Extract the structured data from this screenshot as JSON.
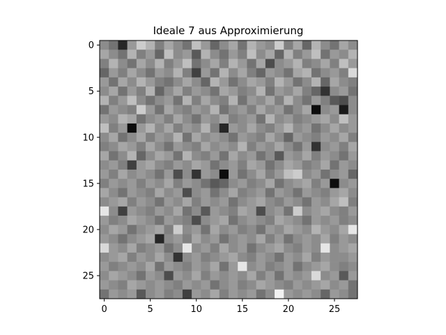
{
  "chart_data": {
    "type": "heatmap",
    "title": "Ideale 7 aus Approximierung",
    "xlabel": "",
    "ylabel": "",
    "colormap": "gray",
    "rows": 28,
    "cols": 28,
    "xticks": [
      0,
      5,
      10,
      15,
      20,
      25
    ],
    "yticks": [
      0,
      5,
      10,
      15,
      20,
      25
    ],
    "xlim": [
      -0.5,
      27.5
    ],
    "ylim": [
      27.5,
      -0.5
    ],
    "vmin": 0,
    "vmax": 1,
    "values": [
      [
        0.55,
        0.45,
        0.15,
        0.6,
        0.8,
        0.7,
        0.5,
        0.65,
        0.55,
        0.45,
        0.75,
        0.6,
        0.4,
        0.55,
        0.65,
        0.45,
        0.7,
        0.6,
        0.55,
        0.8,
        0.5,
        0.65,
        0.4,
        0.7,
        0.55,
        0.45,
        0.65,
        0.55
      ],
      [
        0.65,
        0.55,
        0.45,
        0.7,
        0.5,
        0.6,
        0.4,
        0.75,
        0.55,
        0.6,
        0.35,
        0.7,
        0.55,
        0.45,
        0.6,
        0.5,
        0.75,
        0.55,
        0.65,
        0.4,
        0.7,
        0.5,
        0.6,
        0.75,
        0.45,
        0.6,
        0.55,
        0.7
      ],
      [
        0.5,
        0.7,
        0.55,
        0.45,
        0.65,
        0.55,
        0.7,
        0.5,
        0.6,
        0.75,
        0.45,
        0.55,
        0.65,
        0.5,
        0.7,
        0.6,
        0.45,
        0.65,
        0.3,
        0.55,
        0.6,
        0.7,
        0.5,
        0.55,
        0.65,
        0.5,
        0.75,
        0.6
      ],
      [
        0.4,
        0.6,
        0.5,
        0.65,
        0.55,
        0.45,
        0.6,
        0.55,
        0.7,
        0.5,
        0.25,
        0.6,
        0.45,
        0.7,
        0.55,
        0.65,
        0.5,
        0.4,
        0.6,
        0.55,
        0.45,
        0.65,
        0.7,
        0.45,
        0.55,
        0.6,
        0.5,
        0.85
      ],
      [
        0.6,
        0.45,
        0.65,
        0.55,
        0.7,
        0.6,
        0.5,
        0.45,
        0.55,
        0.65,
        0.55,
        0.4,
        0.7,
        0.6,
        0.45,
        0.55,
        0.65,
        0.6,
        0.5,
        0.7,
        0.6,
        0.45,
        0.55,
        0.7,
        0.4,
        0.65,
        0.55,
        0.5
      ],
      [
        0.55,
        0.65,
        0.45,
        0.6,
        0.5,
        0.7,
        0.4,
        0.55,
        0.65,
        0.5,
        0.6,
        0.55,
        0.45,
        0.65,
        0.6,
        0.5,
        0.55,
        0.7,
        0.45,
        0.6,
        0.55,
        0.65,
        0.5,
        0.4,
        0.2,
        0.55,
        0.6,
        0.45
      ],
      [
        0.7,
        0.5,
        0.6,
        0.75,
        0.55,
        0.45,
        0.55,
        0.6,
        0.45,
        0.7,
        0.5,
        0.65,
        0.55,
        0.5,
        0.7,
        0.45,
        0.6,
        0.55,
        0.65,
        0.5,
        0.7,
        0.55,
        0.45,
        0.6,
        0.5,
        0.35,
        0.3,
        0.55
      ],
      [
        0.45,
        0.6,
        0.55,
        0.5,
        0.8,
        0.6,
        0.45,
        0.65,
        0.55,
        0.5,
        0.6,
        0.55,
        0.7,
        0.45,
        0.55,
        0.6,
        0.5,
        0.65,
        0.55,
        0.6,
        0.45,
        0.55,
        0.65,
        0.05,
        0.55,
        0.6,
        0.1,
        0.55
      ],
      [
        0.6,
        0.55,
        0.7,
        0.65,
        0.45,
        0.55,
        0.6,
        0.5,
        0.65,
        0.55,
        0.45,
        0.6,
        0.55,
        0.65,
        0.5,
        0.55,
        0.6,
        0.45,
        0.7,
        0.55,
        0.6,
        0.5,
        0.55,
        0.6,
        0.65,
        0.55,
        0.75,
        0.6
      ],
      [
        0.75,
        0.5,
        0.6,
        0.05,
        0.6,
        0.7,
        0.55,
        0.65,
        0.5,
        0.6,
        0.55,
        0.7,
        0.5,
        0.15,
        0.6,
        0.55,
        0.65,
        0.55,
        0.5,
        0.6,
        0.7,
        0.55,
        0.6,
        0.45,
        0.55,
        0.65,
        0.55,
        0.6
      ],
      [
        0.55,
        0.65,
        0.45,
        0.55,
        0.65,
        0.5,
        0.6,
        0.55,
        0.7,
        0.45,
        0.65,
        0.55,
        0.6,
        0.55,
        0.45,
        0.6,
        0.55,
        0.5,
        0.65,
        0.55,
        0.4,
        0.6,
        0.55,
        0.5,
        0.6,
        0.55,
        0.65,
        0.5
      ],
      [
        0.5,
        0.55,
        0.65,
        0.6,
        0.5,
        0.65,
        0.55,
        0.45,
        0.6,
        0.55,
        0.5,
        0.65,
        0.55,
        0.6,
        0.55,
        0.7,
        0.5,
        0.6,
        0.55,
        0.65,
        0.55,
        0.45,
        0.6,
        0.2,
        0.55,
        0.6,
        0.5,
        0.65
      ],
      [
        0.65,
        0.45,
        0.55,
        0.7,
        0.4,
        0.55,
        0.65,
        0.6,
        0.45,
        0.7,
        0.55,
        0.5,
        0.6,
        0.45,
        0.65,
        0.55,
        0.6,
        0.45,
        0.55,
        0.35,
        0.6,
        0.55,
        0.65,
        0.5,
        0.6,
        0.55,
        0.45,
        0.6
      ],
      [
        0.55,
        0.6,
        0.5,
        0.25,
        0.6,
        0.65,
        0.55,
        0.5,
        0.6,
        0.55,
        0.65,
        0.6,
        0.45,
        0.55,
        0.6,
        0.5,
        0.65,
        0.6,
        0.45,
        0.55,
        0.65,
        0.6,
        0.5,
        0.55,
        0.65,
        0.45,
        0.6,
        0.55
      ],
      [
        0.6,
        0.5,
        0.65,
        0.55,
        0.6,
        0.55,
        0.45,
        0.6,
        0.3,
        0.55,
        0.2,
        0.6,
        0.55,
        0.05,
        0.6,
        0.45,
        0.55,
        0.65,
        0.5,
        0.6,
        0.75,
        0.8,
        0.55,
        0.6,
        0.45,
        0.55,
        0.6,
        0.4
      ],
      [
        0.5,
        0.6,
        0.55,
        0.6,
        0.5,
        0.6,
        0.55,
        0.65,
        0.5,
        0.6,
        0.55,
        0.45,
        0.35,
        0.4,
        0.55,
        0.6,
        0.5,
        0.55,
        0.65,
        0.45,
        0.55,
        0.6,
        0.65,
        0.5,
        0.6,
        0.05,
        0.55,
        0.6
      ],
      [
        0.65,
        0.55,
        0.45,
        0.6,
        0.55,
        0.5,
        0.65,
        0.55,
        0.6,
        0.3,
        0.55,
        0.6,
        0.45,
        0.55,
        0.65,
        0.5,
        0.55,
        0.6,
        0.45,
        0.6,
        0.55,
        0.45,
        0.6,
        0.55,
        0.5,
        0.6,
        0.65,
        0.55
      ],
      [
        0.55,
        0.6,
        0.65,
        0.5,
        0.6,
        0.55,
        0.45,
        0.6,
        0.55,
        0.65,
        0.5,
        0.6,
        0.55,
        0.6,
        0.45,
        0.55,
        0.6,
        0.65,
        0.55,
        0.5,
        0.6,
        0.55,
        0.45,
        0.6,
        0.55,
        0.65,
        0.75,
        0.5
      ],
      [
        0.9,
        0.55,
        0.25,
        0.6,
        0.55,
        0.5,
        0.6,
        0.55,
        0.65,
        0.45,
        0.55,
        0.35,
        0.6,
        0.55,
        0.5,
        0.65,
        0.6,
        0.3,
        0.55,
        0.6,
        0.45,
        0.8,
        0.55,
        0.6,
        0.65,
        0.55,
        0.5,
        0.6
      ],
      [
        0.6,
        0.5,
        0.55,
        0.65,
        0.6,
        0.55,
        0.45,
        0.6,
        0.55,
        0.5,
        0.3,
        0.55,
        0.6,
        0.65,
        0.45,
        0.55,
        0.6,
        0.55,
        0.5,
        0.65,
        0.6,
        0.55,
        0.45,
        0.6,
        0.55,
        0.6,
        0.5,
        0.55
      ],
      [
        0.55,
        0.65,
        0.6,
        0.45,
        0.55,
        0.6,
        0.65,
        0.5,
        0.8,
        0.55,
        0.6,
        0.45,
        0.65,
        0.55,
        0.6,
        0.5,
        0.55,
        0.45,
        0.6,
        0.55,
        0.65,
        0.6,
        0.55,
        0.7,
        0.6,
        0.55,
        0.65,
        0.9
      ],
      [
        0.6,
        0.55,
        0.45,
        0.55,
        0.6,
        0.65,
        0.15,
        0.55,
        0.6,
        0.5,
        0.65,
        0.55,
        0.6,
        0.45,
        0.55,
        0.6,
        0.55,
        0.65,
        0.5,
        0.6,
        0.45,
        0.55,
        0.6,
        0.55,
        0.65,
        0.5,
        0.6,
        0.55
      ],
      [
        0.85,
        0.6,
        0.55,
        0.65,
        0.5,
        0.55,
        0.6,
        0.45,
        0.55,
        0.9,
        0.55,
        0.6,
        0.5,
        0.65,
        0.55,
        0.6,
        0.45,
        0.55,
        0.6,
        0.65,
        0.55,
        0.5,
        0.6,
        0.55,
        0.9,
        0.55,
        0.6,
        0.65
      ],
      [
        0.55,
        0.6,
        0.65,
        0.5,
        0.6,
        0.55,
        0.65,
        0.55,
        0.2,
        0.55,
        0.6,
        0.5,
        0.55,
        0.6,
        0.65,
        0.55,
        0.5,
        0.6,
        0.55,
        0.45,
        0.6,
        0.55,
        0.65,
        0.5,
        0.6,
        0.55,
        0.55,
        0.6
      ],
      [
        0.6,
        0.5,
        0.55,
        0.6,
        0.55,
        0.65,
        0.45,
        0.6,
        0.55,
        0.5,
        0.6,
        0.55,
        0.65,
        0.45,
        0.6,
        0.9,
        0.55,
        0.6,
        0.5,
        0.55,
        0.6,
        0.45,
        0.55,
        0.6,
        0.65,
        0.55,
        0.5,
        0.55
      ],
      [
        0.55,
        0.65,
        0.6,
        0.55,
        0.45,
        0.6,
        0.55,
        0.3,
        0.6,
        0.55,
        0.65,
        0.5,
        0.6,
        0.55,
        0.6,
        0.55,
        0.65,
        0.5,
        0.6,
        0.45,
        0.6,
        0.55,
        0.6,
        0.85,
        0.55,
        0.6,
        0.35,
        0.6
      ],
      [
        0.6,
        0.55,
        0.5,
        0.65,
        0.6,
        0.55,
        0.6,
        0.55,
        0.5,
        0.6,
        0.55,
        0.6,
        0.45,
        0.55,
        0.6,
        0.5,
        0.55,
        0.65,
        0.6,
        0.55,
        0.5,
        0.6,
        0.55,
        0.6,
        0.65,
        0.55,
        0.6,
        0.45
      ],
      [
        0.45,
        0.6,
        0.55,
        0.6,
        0.35,
        0.55,
        0.6,
        0.5,
        0.55,
        0.25,
        0.6,
        0.55,
        0.65,
        0.5,
        0.6,
        0.55,
        0.6,
        0.45,
        0.55,
        0.95,
        0.6,
        0.55,
        0.6,
        0.55,
        0.4,
        0.6,
        0.55,
        0.45
      ]
    ]
  }
}
